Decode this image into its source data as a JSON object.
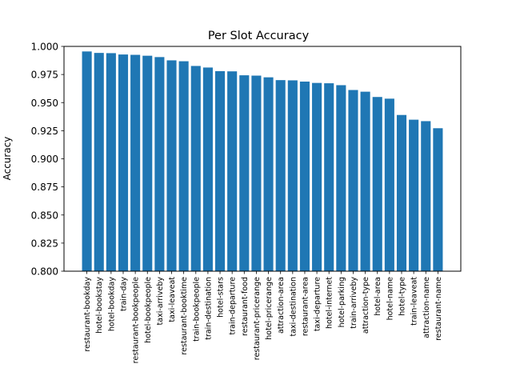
{
  "chart_data": {
    "type": "bar",
    "title": "Per Slot Accuracy",
    "xlabel": "",
    "ylabel": "Accuracy",
    "ylim": [
      0.8,
      1.0
    ],
    "yticks": [
      0.8,
      0.825,
      0.85,
      0.875,
      0.9,
      0.925,
      0.95,
      0.975,
      1.0
    ],
    "ytick_labels": [
      "0.800",
      "0.825",
      "0.850",
      "0.875",
      "0.900",
      "0.925",
      "0.950",
      "0.975",
      "1.000"
    ],
    "grid": false,
    "bar_color": "#1f77b4",
    "categories": [
      "restaurant-bookday",
      "hotel-bookstay",
      "hotel-bookday",
      "train-day",
      "restaurant-bookpeople",
      "hotel-bookpeople",
      "taxi-arriveby",
      "taxi-leaveat",
      "restaurant-booktime",
      "train-bookpeople",
      "train-destination",
      "hotel-stars",
      "train-departure",
      "restaurant-food",
      "restaurant-pricerange",
      "hotel-pricerange",
      "attraction-area",
      "taxi-destination",
      "restaurant-area",
      "taxi-departure",
      "hotel-internet",
      "hotel-parking",
      "train-arriveby",
      "attraction-type",
      "hotel-area",
      "hotel-name",
      "hotel-type",
      "train-leaveat",
      "attraction-name",
      "restaurant-name"
    ],
    "values": [
      0.9955,
      0.9942,
      0.994,
      0.9928,
      0.9925,
      0.9917,
      0.9905,
      0.9876,
      0.9868,
      0.9826,
      0.9812,
      0.978,
      0.9778,
      0.9743,
      0.974,
      0.9725,
      0.97,
      0.9698,
      0.9687,
      0.9675,
      0.9672,
      0.9655,
      0.9612,
      0.9597,
      0.955,
      0.9535,
      0.939,
      0.9348,
      0.9335,
      0.9272
    ]
  }
}
